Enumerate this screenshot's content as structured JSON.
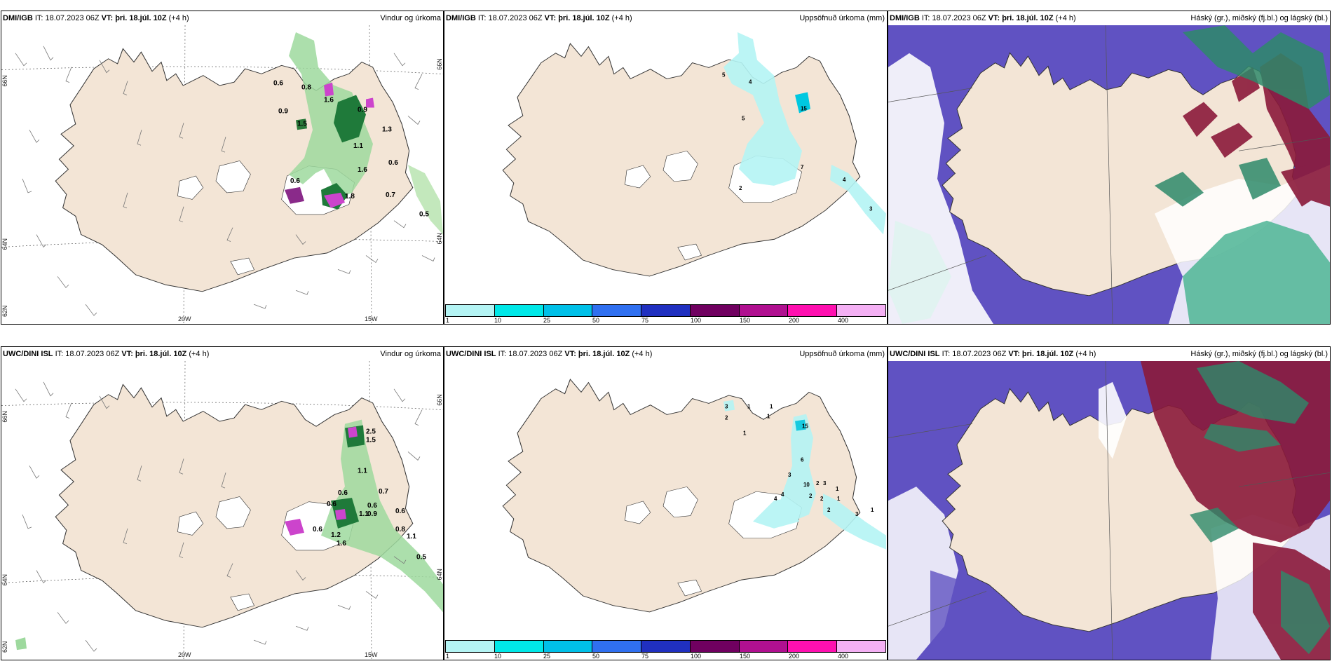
{
  "rows": [
    {
      "model": "DMI/IGB",
      "panels": [
        {
          "it": "IT: 18.07.2023 06Z",
          "vt_label": "VT:",
          "vt": "þri. 18.júl. 10Z",
          "lead": "(+4 h)",
          "title": "Vindur og úrkoma",
          "values": [
            "0.6",
            "0.8",
            "0.9",
            "1.6",
            "1.3",
            "1.1",
            "0.6",
            "1.6",
            "0.6",
            "1.8",
            "0.7",
            "0.5",
            "1.5",
            "0.9"
          ]
        },
        {
          "it": "IT: 18.07.2023 06Z",
          "vt_label": "VT:",
          "vt": "þri. 18.júl. 10Z",
          "lead": "(+4 h)",
          "title": "Uppsöfnuð úrkoma (mm)",
          "values": [
            "5",
            "4",
            "5",
            "15",
            "7",
            "4",
            "3",
            "2"
          ]
        },
        {
          "it": "IT: 18.07.2023 06Z",
          "vt_label": "VT:",
          "vt": "þri. 18.júl. 10Z",
          "lead": "(+4 h)",
          "title": "Háský (gr.), miðský (fj.bl.) og lágský (bl.)"
        }
      ]
    },
    {
      "model": "UWC/DINI ISL",
      "panels": [
        {
          "it": "IT: 18.07.2023 06Z",
          "vt_label": "VT:",
          "vt": "þri. 18.júl. 10Z",
          "lead": "(+4 h)",
          "title": "Vindur og úrkoma",
          "values": [
            "2.5",
            "1.5",
            "1.1",
            "0.6",
            "0.6",
            "0.6",
            "0.7",
            "1.1",
            "0.6",
            "0.9",
            "0.6",
            "1.2",
            "0.8",
            "1.1",
            "0.5",
            "1.6"
          ]
        },
        {
          "it": "IT: 18.07.2023 06Z",
          "vt_label": "VT:",
          "vt": "þri. 18.júl. 10Z",
          "lead": "(+4 h)",
          "title": "Uppsöfnuð úrkoma (mm)",
          "values": [
            "3",
            "1",
            "1",
            "2",
            "1",
            "1",
            "15",
            "6",
            "3",
            "10",
            "2",
            "3",
            "1",
            "4",
            "4",
            "2",
            "2",
            "1",
            "2",
            "3",
            "1"
          ]
        },
        {
          "it": "IT: 18.07.2023 06Z",
          "vt_label": "VT:",
          "vt": "þri. 18.júl. 10Z",
          "lead": "(+4 h)",
          "title": "Háský (gr.), miðský (fj.bl.) og lágský (bl.)"
        }
      ]
    }
  ],
  "axes": {
    "lon_left": "20W",
    "lon_right": "15W",
    "lat_top": "66N",
    "lat_mid": "64N",
    "lat_bot": "62N",
    "lat_right_top": "66N",
    "lat_right_mid": "64N"
  },
  "colorbar": {
    "ticks": [
      "1",
      "10",
      "25",
      "50",
      "75",
      "100",
      "150",
      "200",
      "400"
    ],
    "colors": [
      "#b4f4f4",
      "#00e8e8",
      "#00c0e8",
      "#3070f0",
      "#2030c0",
      "#700060",
      "#b01090",
      "#ff10b0",
      "#f4b0f4"
    ]
  },
  "colors": {
    "land": "#f3e5d6",
    "clear_sky": "#6052c2",
    "precip": "#6ac46a",
    "heavy": "#0b5e28",
    "magenta": "#cc44cc",
    "cyan_precip": "#b4f4f4",
    "high_cloud": "#8b1a3a",
    "mid_cloud": "#2e8a6a"
  }
}
